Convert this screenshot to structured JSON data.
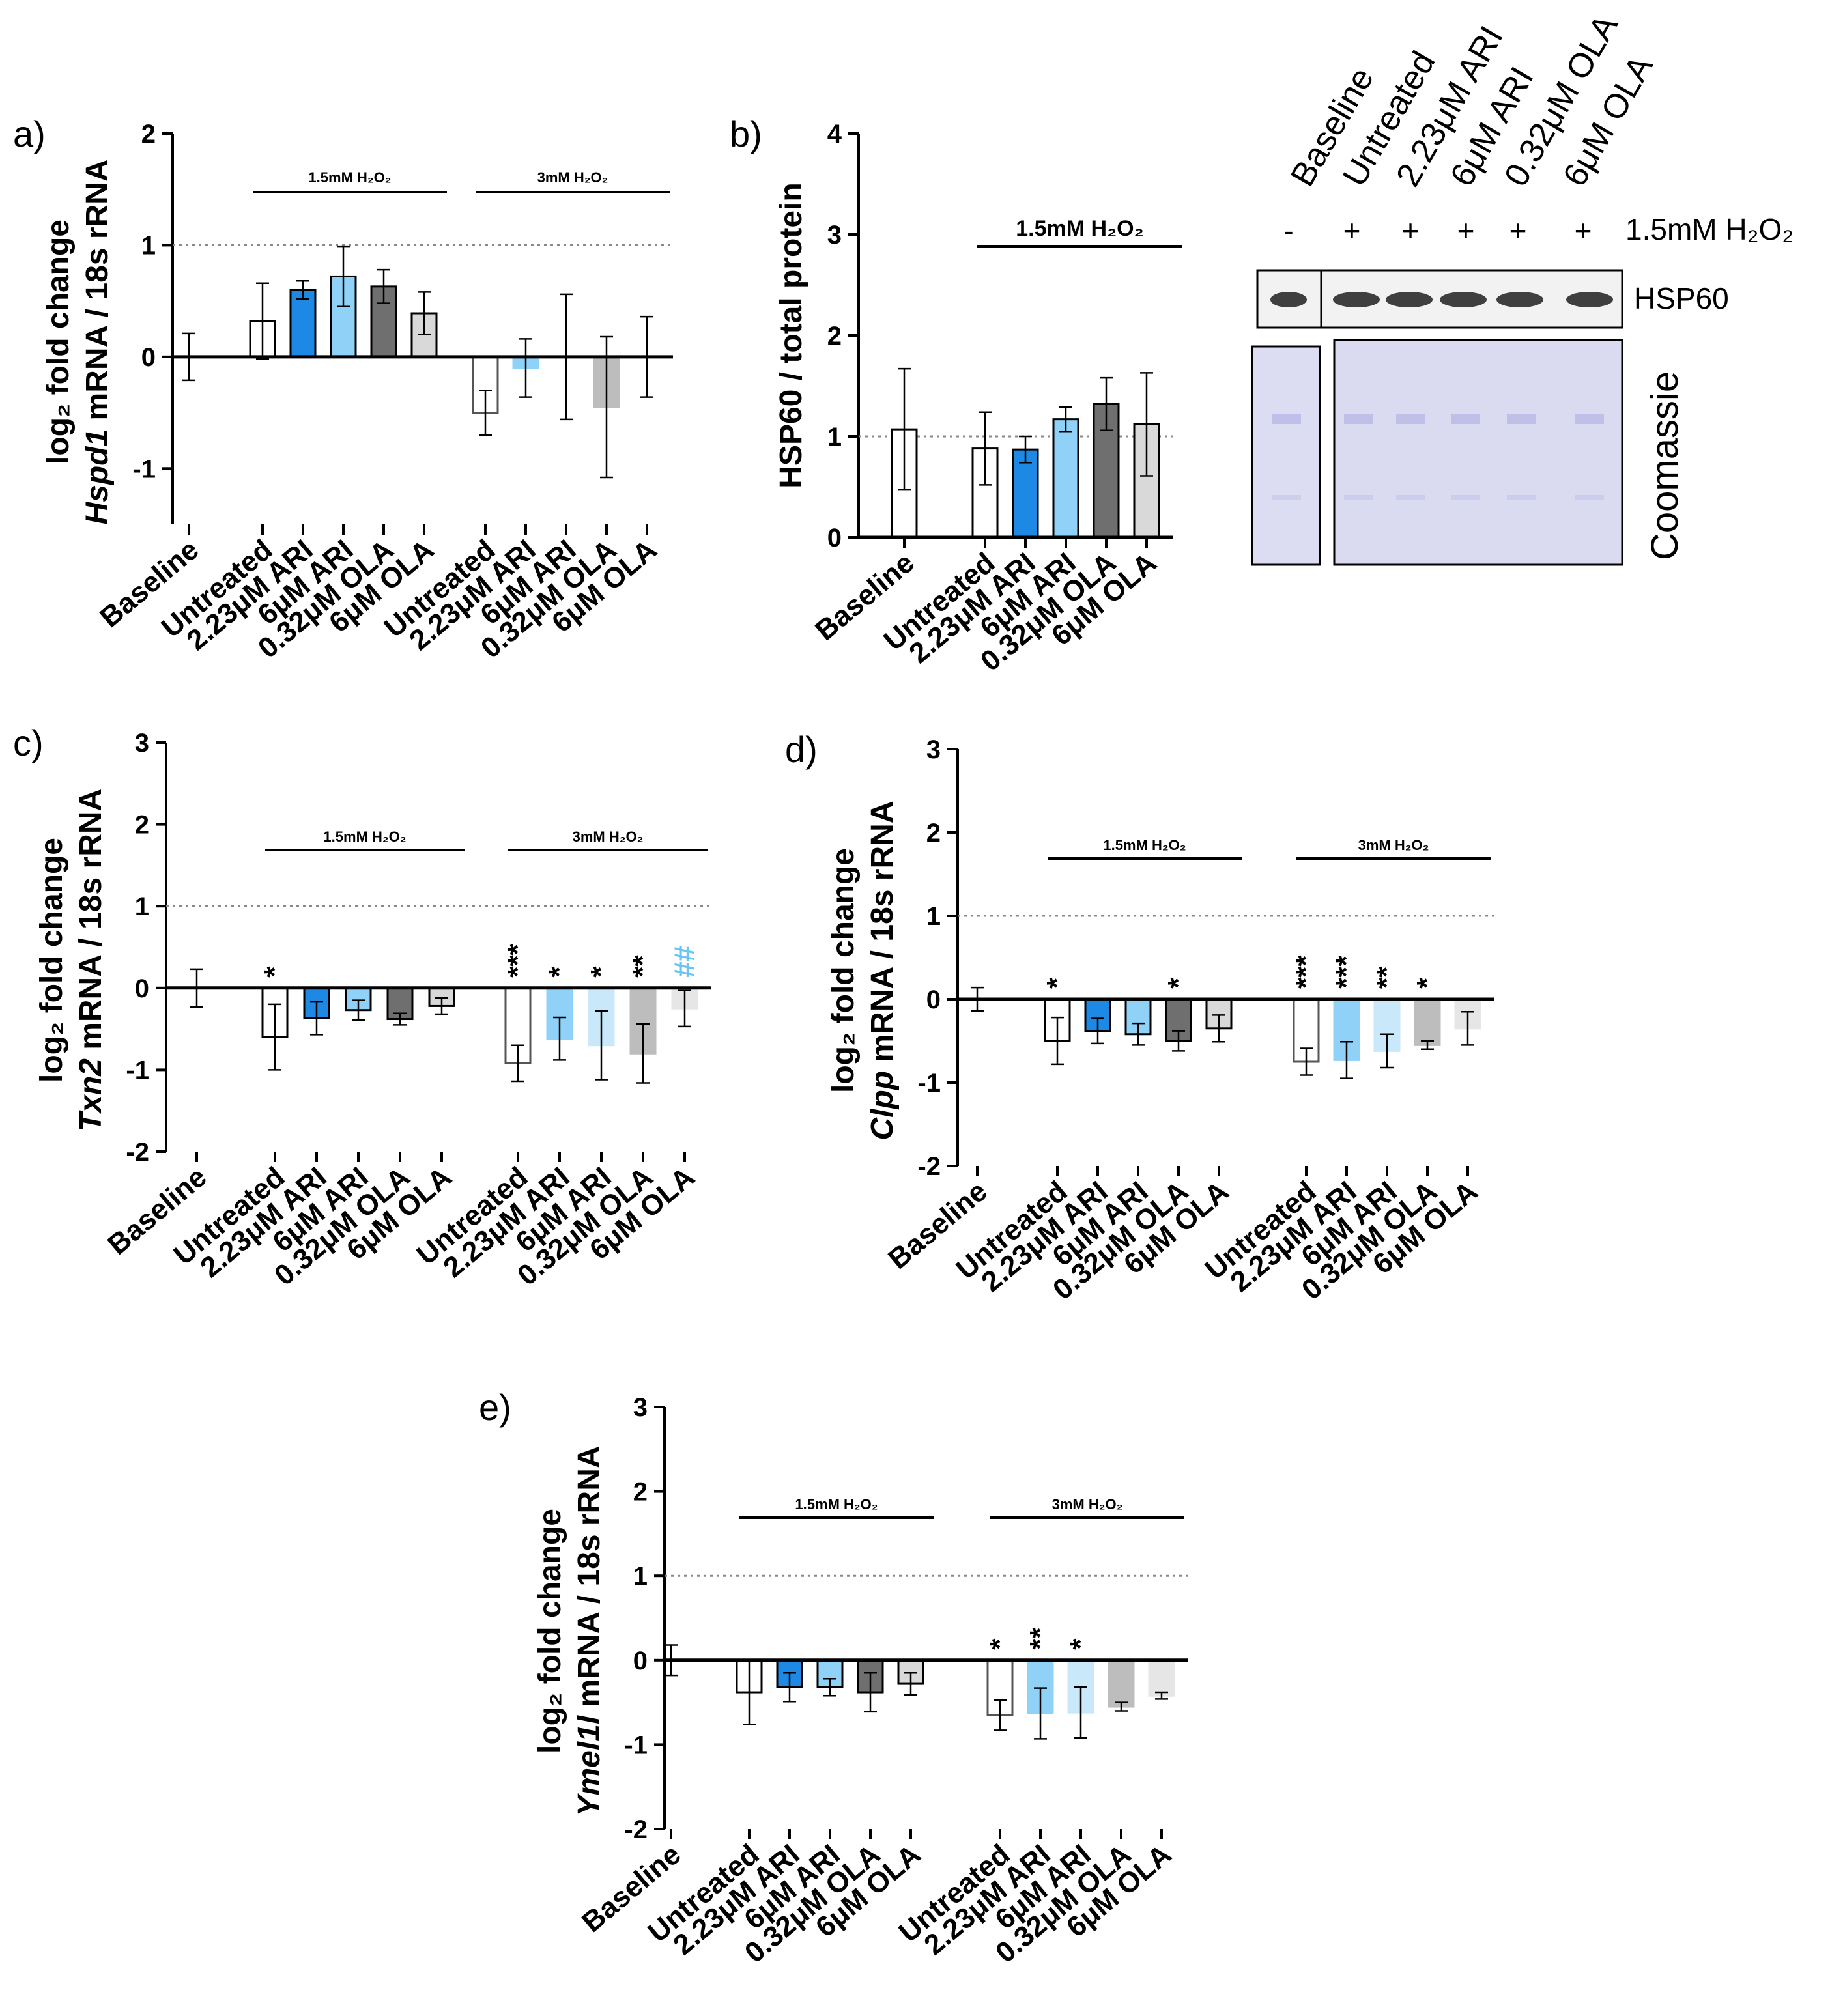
{
  "categories": [
    "Baseline",
    "Untreated",
    "2.23μM ARI",
    "6μM ARI",
    "0.32μM OLA",
    "6μM OLA"
  ],
  "group_labels": {
    "low": "1.5mM H₂O₂",
    "high": "3mM H₂O₂"
  },
  "colors": {
    "untreated": "#ffffff",
    "ari_low": "#1e88e5",
    "ari_high": "#90d2f7",
    "ola_low": "#6f6f6f",
    "ola_high": "#d9d9d9"
  },
  "chart_data": [
    {
      "id": "a",
      "panel_label": "a)",
      "type": "bar",
      "ylabel_line1": "log₂ fold change",
      "ylabel_gene": "Hspd1",
      "ylabel_rest": " mRNA / 18s rRNA",
      "ylim": [
        -1.5,
        2
      ],
      "yticks": [
        -1,
        0,
        1,
        2
      ],
      "reference_line": 1,
      "baseline": {
        "value": 0.0,
        "err": 0.21
      },
      "groups": [
        {
          "label": "1.5mM H₂O₂",
          "values": [
            0.32,
            0.6,
            0.72,
            0.63,
            0.39
          ],
          "errors": [
            0.34,
            0.08,
            0.27,
            0.15,
            0.19
          ],
          "stars": [
            "",
            "",
            "",
            "",
            ""
          ]
        },
        {
          "label": "3mM H₂O₂",
          "values": [
            -0.5,
            -0.1,
            0.0,
            -0.45,
            0.0
          ],
          "errors": [
            0.2,
            0.26,
            0.56,
            0.63,
            0.36
          ],
          "stars": [
            "",
            "",
            "",
            "",
            ""
          ]
        }
      ]
    },
    {
      "id": "b",
      "panel_label": "b)",
      "type": "bar",
      "ylabel_line1": "HSP60 / total protein",
      "ylabel_gene": "",
      "ylabel_rest": "",
      "ylim": [
        0,
        4
      ],
      "yticks": [
        0,
        1,
        2,
        3,
        4
      ],
      "reference_line": 1,
      "baseline": {
        "value": 1.07,
        "err": 0.6
      },
      "groups": [
        {
          "label": "1.5mM H₂O₂",
          "values": [
            0.88,
            0.87,
            1.17,
            1.32,
            1.12
          ],
          "errors": [
            0.36,
            0.13,
            0.12,
            0.26,
            0.51
          ],
          "stars": [
            "",
            "",
            "",
            "",
            ""
          ]
        }
      ]
    },
    {
      "id": "c",
      "panel_label": "c)",
      "type": "bar",
      "ylabel_line1": "log₂ fold change",
      "ylabel_gene": "Txn2",
      "ylabel_rest": " mRNA / 18s rRNA",
      "ylim": [
        -2,
        3
      ],
      "yticks": [
        -2,
        -1,
        0,
        1,
        2,
        3
      ],
      "reference_line": 1,
      "baseline": {
        "value": 0.0,
        "err": 0.23
      },
      "groups": [
        {
          "label": "1.5mM H₂O₂",
          "values": [
            -0.6,
            -0.37,
            -0.27,
            -0.38,
            -0.22
          ],
          "errors": [
            0.4,
            0.2,
            0.12,
            0.07,
            0.1
          ],
          "stars": [
            "*",
            "",
            "",
            "",
            ""
          ]
        },
        {
          "label": "3mM H₂O₂",
          "values": [
            -0.92,
            -0.62,
            -0.7,
            -0.8,
            -0.25
          ],
          "errors": [
            0.22,
            0.26,
            0.42,
            0.36,
            0.22
          ],
          "stars": [
            "***",
            "*",
            "*",
            "**",
            "##"
          ]
        }
      ]
    },
    {
      "id": "d",
      "panel_label": "d)",
      "type": "bar",
      "ylabel_line1": "log₂ fold change",
      "ylabel_gene": "Clpp",
      "ylabel_rest": " mRNA / 18s rRNA",
      "ylim": [
        -2,
        3
      ],
      "yticks": [
        -2,
        -1,
        0,
        1,
        2,
        3
      ],
      "reference_line": 1,
      "baseline": {
        "value": 0.0,
        "err": 0.14
      },
      "groups": [
        {
          "label": "1.5mM H₂O₂",
          "values": [
            -0.5,
            -0.38,
            -0.42,
            -0.5,
            -0.35
          ],
          "errors": [
            0.28,
            0.15,
            0.13,
            0.12,
            0.16
          ],
          "stars": [
            "*",
            "",
            "",
            "*",
            ""
          ]
        },
        {
          "label": "3mM H₂O₂",
          "values": [
            -0.75,
            -0.73,
            -0.62,
            -0.55,
            -0.35
          ],
          "errors": [
            0.16,
            0.22,
            0.2,
            0.05,
            0.2
          ],
          "stars": [
            "***",
            "***",
            "**",
            "*",
            ""
          ]
        }
      ]
    },
    {
      "id": "e",
      "panel_label": "e)",
      "type": "bar",
      "ylabel_line1": "log₂ fold change",
      "ylabel_gene": "Ymel1l",
      "ylabel_rest": " mRNA / 18s rRNA",
      "ylim": [
        -2,
        3
      ],
      "yticks": [
        -2,
        -1,
        0,
        1,
        2,
        3
      ],
      "reference_line": 1,
      "baseline": {
        "value": 0.0,
        "err": 0.18
      },
      "groups": [
        {
          "label": "1.5mM H₂O₂",
          "values": [
            -0.38,
            -0.32,
            -0.32,
            -0.38,
            -0.28
          ],
          "errors": [
            0.38,
            0.17,
            0.1,
            0.23,
            0.13
          ],
          "stars": [
            "",
            "",
            "",
            "",
            ""
          ]
        },
        {
          "label": "3mM H₂O₂",
          "values": [
            -0.65,
            -0.63,
            -0.62,
            -0.55,
            -0.42
          ],
          "errors": [
            0.18,
            0.3,
            0.3,
            0.05,
            0.04
          ],
          "stars": [
            "*",
            "**",
            "*",
            "",
            ""
          ]
        }
      ]
    }
  ],
  "blot": {
    "lane_labels": [
      "Baseline",
      "Untreated",
      "2.23μM ARI",
      "6μM ARI",
      "0.32μM OLA",
      "6μM OLA"
    ],
    "h2o2_signs": [
      "-",
      "+",
      "+",
      "+",
      "+",
      "+"
    ],
    "h2o2_label": "1.5mM H₂O₂",
    "band_label": "HSP60",
    "stain_label": "Coomassie"
  }
}
